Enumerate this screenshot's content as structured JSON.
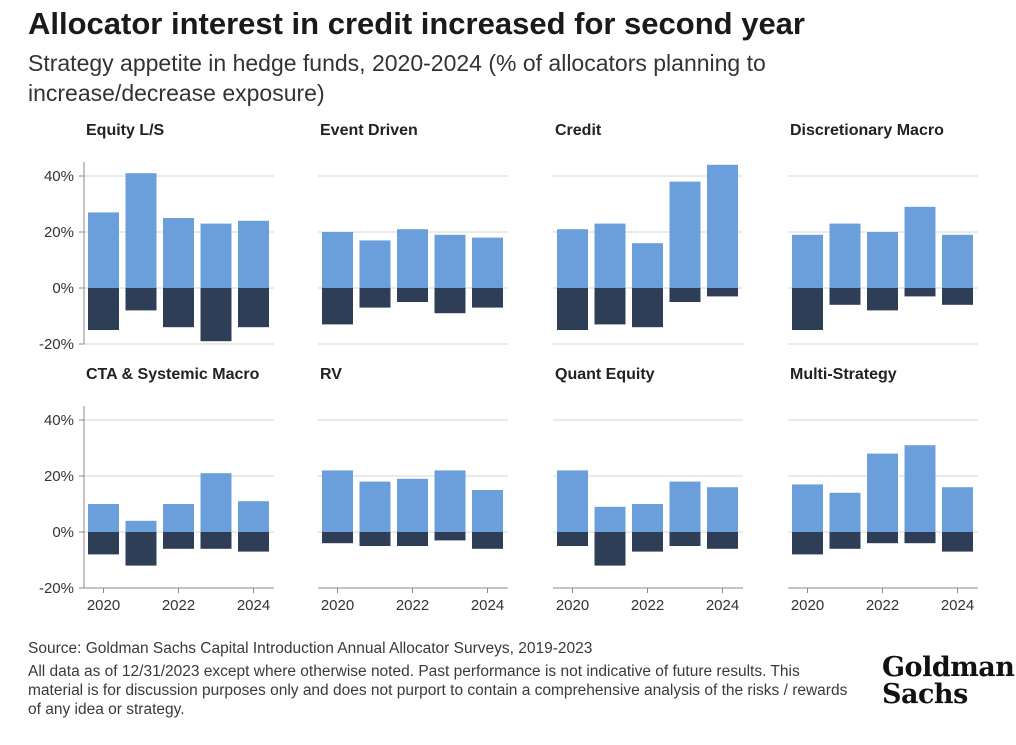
{
  "title": "Allocator interest in credit increased for second year",
  "subtitle": "Strategy appetite in hedge funds, 2020-2024 (% of allocators planning to increase/decrease exposure)",
  "source": "Source: Goldman Sachs Capital Introduction Annual Allocator Surveys, 2019-2023",
  "disclaimer": "All data as of 12/31/2023 except where otherwise noted. Past performance is not indicative of future results. This material is for discussion purposes only and does not purport to contain a comprehensive analysis of the risks / rewards of any idea or strategy.",
  "logo": {
    "line1": "Goldman",
    "line2": "Sachs"
  },
  "colors": {
    "increase": "#6b9fdc",
    "decrease": "#2f3e57",
    "grid": "#d4d4d4",
    "axis": "#888888"
  },
  "chart_data": {
    "type": "bar",
    "stacking": "diverging",
    "years": [
      2020,
      2021,
      2022,
      2023,
      2024
    ],
    "x_tick_labels": [
      "2020",
      "2022",
      "2024"
    ],
    "y_ticks": [
      40,
      20,
      0,
      -20
    ],
    "y_tick_labels": [
      "40%",
      "20%",
      "0%",
      "-20%"
    ],
    "ylim": [
      -20,
      45
    ],
    "grid": true,
    "panels": [
      {
        "name": "Equity L/S",
        "increase": [
          27,
          41,
          25,
          23,
          24
        ],
        "decrease": [
          -15,
          -8,
          -14,
          -19,
          -14
        ]
      },
      {
        "name": "Event Driven",
        "increase": [
          20,
          17,
          21,
          19,
          18
        ],
        "decrease": [
          -13,
          -7,
          -5,
          -9,
          -7
        ]
      },
      {
        "name": "Credit",
        "increase": [
          21,
          23,
          16,
          38,
          44
        ],
        "decrease": [
          -15,
          -13,
          -14,
          -5,
          -3
        ]
      },
      {
        "name": "Discretionary Macro",
        "increase": [
          19,
          23,
          20,
          29,
          19
        ],
        "decrease": [
          -15,
          -6,
          -8,
          -3,
          -6
        ]
      },
      {
        "name": "CTA & Systemic Macro",
        "increase": [
          10,
          4,
          10,
          21,
          11
        ],
        "decrease": [
          -8,
          -12,
          -6,
          -6,
          -7
        ]
      },
      {
        "name": "RV",
        "increase": [
          22,
          18,
          19,
          22,
          15
        ],
        "decrease": [
          -4,
          -5,
          -5,
          -3,
          -6
        ]
      },
      {
        "name": "Quant Equity",
        "increase": [
          22,
          9,
          10,
          18,
          16
        ],
        "decrease": [
          -5,
          -12,
          -7,
          -5,
          -6
        ]
      },
      {
        "name": "Multi-Strategy",
        "increase": [
          17,
          14,
          28,
          31,
          16
        ],
        "decrease": [
          -8,
          -6,
          -4,
          -4,
          -7
        ]
      }
    ]
  }
}
